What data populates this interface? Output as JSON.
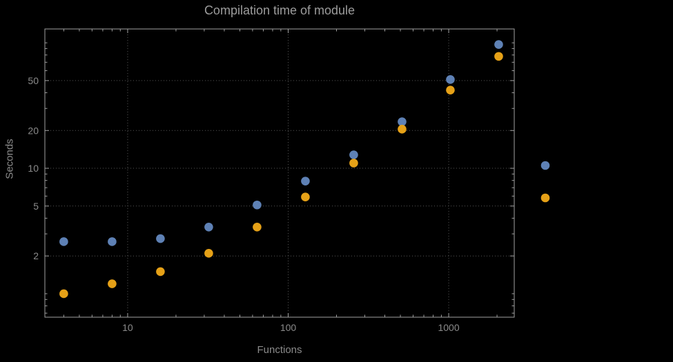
{
  "chart_data": {
    "type": "scatter",
    "title": "Compilation time of module",
    "xlabel": "Functions",
    "ylabel": "Seconds",
    "x_scale": "log",
    "y_scale": "log",
    "grid": "dotted",
    "xlim": [
      3.05,
      2560
    ],
    "ylim": [
      0.65,
      129
    ],
    "x_ticks": [
      10,
      100,
      1000
    ],
    "y_ticks": [
      2,
      5,
      10,
      20,
      50
    ],
    "x": [
      4,
      8,
      16,
      32,
      64,
      128,
      256,
      512,
      1024,
      2048
    ],
    "series": [
      {
        "name": "blue-points",
        "color": "#5e81b5",
        "values": [
          2.6,
          2.6,
          2.75,
          3.4,
          5.1,
          7.9,
          12.8,
          23.5,
          51,
          97
        ]
      },
      {
        "name": "orange-points",
        "color": "#e6a117",
        "values": [
          1.0,
          1.2,
          1.5,
          2.1,
          3.4,
          5.9,
          11,
          20.5,
          42,
          78
        ]
      }
    ],
    "legend_markers": [
      {
        "name": "legend-marker-blue",
        "color": "#5e81b5"
      },
      {
        "name": "legend-marker-orange",
        "color": "#e6a117"
      }
    ]
  },
  "colors": {
    "background": "#000000",
    "frame": "#a2a2a2",
    "grid": "#575757",
    "tick_label": "#8b8b8b",
    "title": "#9c9c9c",
    "axis_label": "#8b8b8b"
  }
}
